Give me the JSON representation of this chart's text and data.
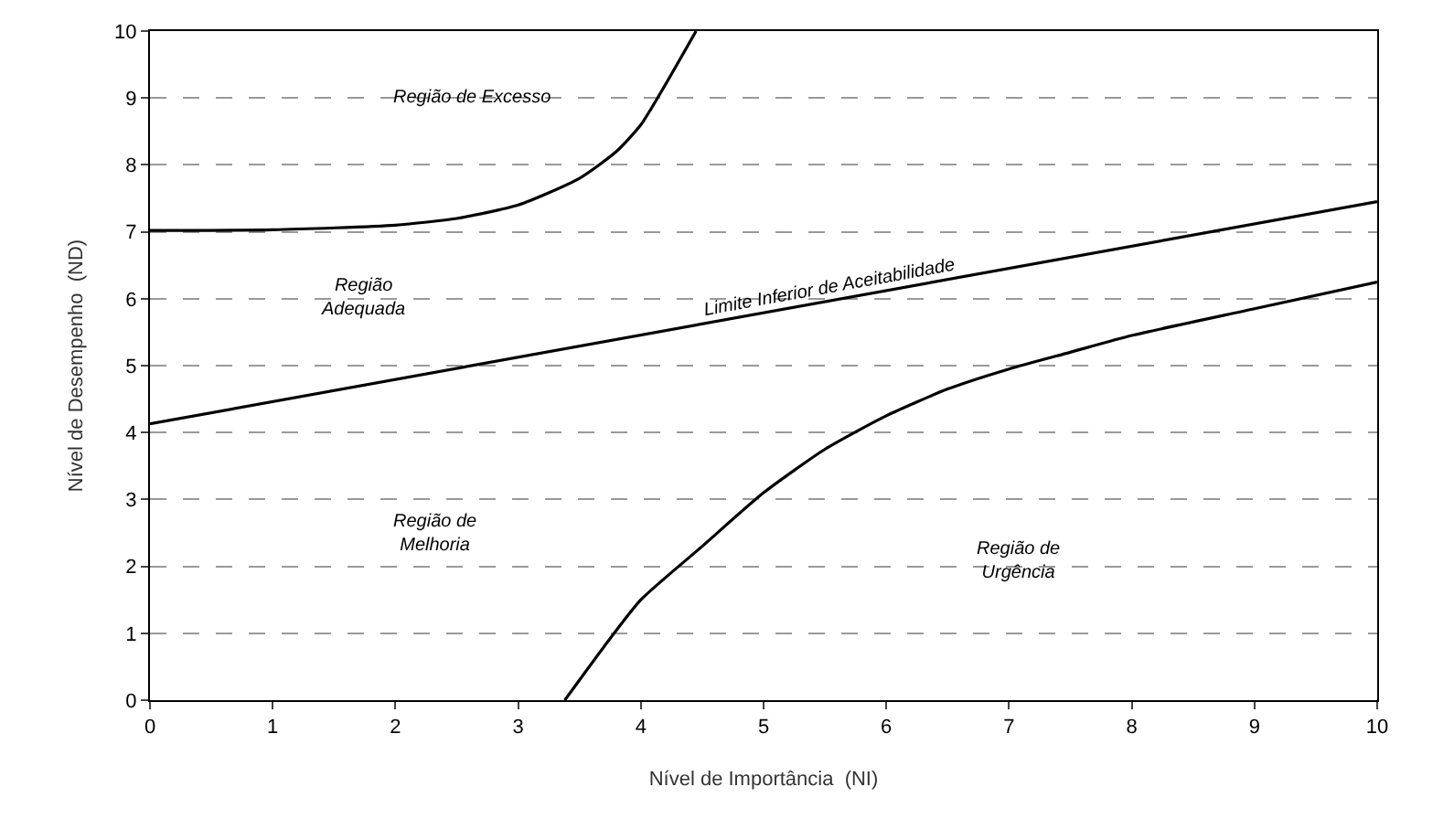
{
  "chart_data": {
    "type": "line",
    "xlabel": "Nível de Importância  (NI)",
    "ylabel": "Nível de Desempenho  (ND)",
    "xlim": [
      0,
      10
    ],
    "xticks": [
      0,
      1,
      2,
      3,
      4,
      5,
      6,
      7,
      8,
      9,
      10
    ],
    "ylim": [
      0,
      10
    ],
    "yticks": [
      0,
      1,
      2,
      3,
      4,
      5,
      6,
      7,
      8,
      9,
      10
    ],
    "grid": "y",
    "marker": "none",
    "line_style": "solid",
    "series": [
      {
        "color": "#000000",
        "x": [
          0,
          1,
          2,
          2.5,
          3,
          3.5,
          3.8,
          4,
          4.2,
          4.45
        ],
        "values": [
          7.02,
          7.03,
          7.1,
          7.2,
          7.4,
          7.8,
          8.2,
          8.6,
          9.2,
          10
        ]
      },
      {
        "color": "#000000",
        "x": [
          0,
          10
        ],
        "values": [
          4.13,
          7.45
        ]
      },
      {
        "color": "#000000",
        "x": [
          3.38,
          3.7,
          4,
          4.5,
          5,
          5.5,
          6,
          6.5,
          7,
          7.5,
          8,
          9,
          10
        ],
        "values": [
          0,
          0.8,
          1.5,
          2.3,
          3.1,
          3.75,
          4.25,
          4.65,
          4.95,
          5.2,
          5.45,
          5.85,
          6.25
        ]
      }
    ],
    "annotations": [
      "Região de Excesso",
      "Região\nAdequada",
      "Limite Inferior de Aceitabilidade",
      "Região de\nMelhoria",
      "Região de\nUrgência"
    ]
  }
}
